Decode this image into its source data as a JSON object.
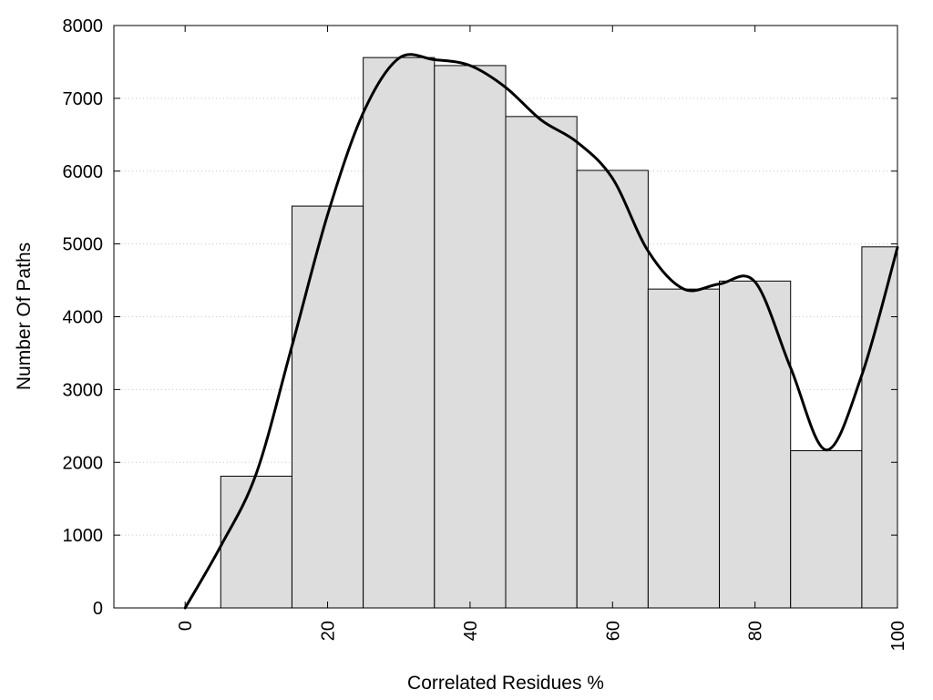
{
  "chart_data": {
    "type": "bar",
    "xlabel": "Correlated Residues %",
    "ylabel": "Number Of Paths",
    "xlim": [
      -10,
      100
    ],
    "ylim": [
      0,
      8000
    ],
    "x_ticks": [
      0,
      20,
      40,
      60,
      80,
      100
    ],
    "y_ticks": [
      0,
      1000,
      2000,
      3000,
      4000,
      5000,
      6000,
      7000,
      8000
    ],
    "grid": "horizontal-dotted",
    "bar_color": "#dddddd",
    "bars": [
      {
        "x": 0,
        "value": 0
      },
      {
        "x": 10,
        "value": 1810
      },
      {
        "x": 20,
        "value": 5520
      },
      {
        "x": 30,
        "value": 7560
      },
      {
        "x": 40,
        "value": 7450
      },
      {
        "x": 50,
        "value": 6750
      },
      {
        "x": 60,
        "value": 6010
      },
      {
        "x": 70,
        "value": 4380
      },
      {
        "x": 80,
        "value": 4490
      },
      {
        "x": 90,
        "value": 2160
      },
      {
        "x": 100,
        "value": 4960
      }
    ],
    "curve": {
      "x": [
        0,
        5,
        10,
        15,
        20,
        25,
        30,
        35,
        40,
        45,
        50,
        55,
        60,
        65,
        70,
        75,
        80,
        85,
        90,
        95,
        100
      ],
      "y": [
        0,
        850,
        1850,
        3600,
        5400,
        6800,
        7550,
        7530,
        7450,
        7150,
        6700,
        6400,
        5900,
        4900,
        4380,
        4450,
        4480,
        3300,
        2170,
        3200,
        4950
      ]
    }
  }
}
